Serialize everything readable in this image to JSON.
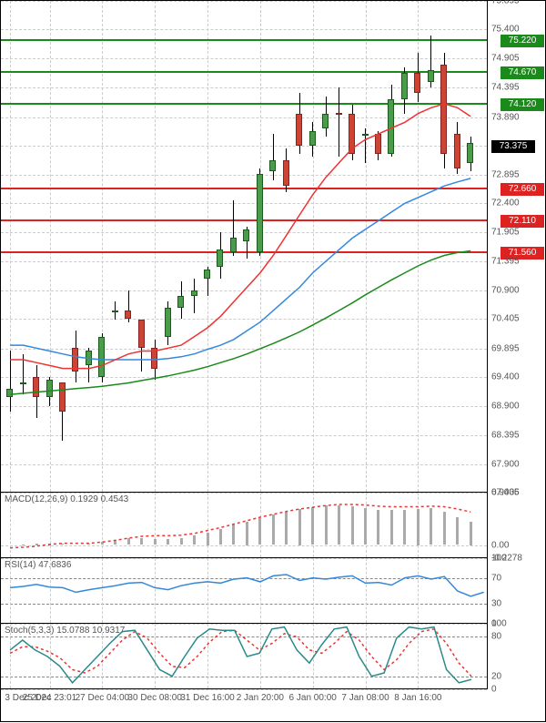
{
  "main": {
    "ymin": 67.405,
    "ymax": 75.895,
    "yticks": [
      67.405,
      67.9,
      68.395,
      68.9,
      69.4,
      69.895,
      70.405,
      70.9,
      71.395,
      71.905,
      72.4,
      72.895,
      73.395,
      73.89,
      74.395,
      74.905,
      75.4,
      75.895
    ],
    "grid_color": "#cccccc",
    "hlines": [
      {
        "value": 75.22,
        "color": "#1a8a1a",
        "label": "75.220",
        "label_bg": "#1a8a1a"
      },
      {
        "value": 74.67,
        "color": "#1a8a1a",
        "label": "74.670",
        "label_bg": "#1a8a1a"
      },
      {
        "value": 74.12,
        "color": "#1a8a1a",
        "label": "74.120",
        "label_bg": "#1a8a1a"
      },
      {
        "value": 72.66,
        "color": "#d22",
        "label": "72.660",
        "label_bg": "#d22"
      },
      {
        "value": 72.11,
        "color": "#d22",
        "label": "72.110",
        "label_bg": "#d22"
      },
      {
        "value": 71.56,
        "color": "#d22",
        "label": "71.560",
        "label_bg": "#d22"
      }
    ],
    "current_price": 73.375,
    "candles": [
      {
        "o": 69.05,
        "h": 69.85,
        "l": 68.8,
        "c": 69.2
      },
      {
        "o": 69.3,
        "h": 69.8,
        "l": 69.1,
        "c": 69.3
      },
      {
        "o": 69.4,
        "h": 69.6,
        "l": 68.7,
        "c": 69.05
      },
      {
        "o": 69.05,
        "h": 69.4,
        "l": 68.9,
        "c": 69.35
      },
      {
        "o": 69.3,
        "h": 69.3,
        "l": 68.3,
        "c": 68.8
      },
      {
        "o": 69.9,
        "h": 70.2,
        "l": 69.3,
        "c": 69.5
      },
      {
        "o": 69.6,
        "h": 69.9,
        "l": 69.3,
        "c": 69.85
      },
      {
        "o": 69.4,
        "h": 70.15,
        "l": 69.3,
        "c": 70.1
      },
      {
        "o": 70.55,
        "h": 70.7,
        "l": 70.4,
        "c": 70.55
      },
      {
        "o": 70.55,
        "h": 70.9,
        "l": 70.35,
        "c": 70.4
      },
      {
        "o": 70.4,
        "h": 70.4,
        "l": 69.5,
        "c": 69.9
      },
      {
        "o": 69.9,
        "h": 70.05,
        "l": 69.35,
        "c": 69.55
      },
      {
        "o": 70.1,
        "h": 70.7,
        "l": 69.95,
        "c": 70.6
      },
      {
        "o": 70.6,
        "h": 71.05,
        "l": 70.4,
        "c": 70.8
      },
      {
        "o": 70.8,
        "h": 71.1,
        "l": 70.5,
        "c": 70.9
      },
      {
        "o": 71.1,
        "h": 71.3,
        "l": 70.8,
        "c": 71.25
      },
      {
        "o": 71.3,
        "h": 71.9,
        "l": 71.1,
        "c": 71.6
      },
      {
        "o": 71.55,
        "h": 72.45,
        "l": 71.5,
        "c": 71.8
      },
      {
        "o": 71.75,
        "h": 72.0,
        "l": 71.45,
        "c": 71.95
      },
      {
        "o": 71.55,
        "h": 73.0,
        "l": 71.5,
        "c": 72.9
      },
      {
        "o": 72.95,
        "h": 73.6,
        "l": 72.8,
        "c": 73.15
      },
      {
        "o": 73.15,
        "h": 73.35,
        "l": 72.6,
        "c": 72.7
      },
      {
        "o": 73.95,
        "h": 74.3,
        "l": 73.25,
        "c": 73.4
      },
      {
        "o": 73.4,
        "h": 73.8,
        "l": 73.2,
        "c": 73.65
      },
      {
        "o": 73.7,
        "h": 74.25,
        "l": 73.55,
        "c": 73.95
      },
      {
        "o": 73.96,
        "h": 74.4,
        "l": 73.2,
        "c": 73.94
      },
      {
        "o": 73.95,
        "h": 74.1,
        "l": 73.15,
        "c": 73.25
      },
      {
        "o": 73.6,
        "h": 73.7,
        "l": 73.1,
        "c": 73.6
      },
      {
        "o": 73.6,
        "h": 73.65,
        "l": 73.15,
        "c": 73.25
      },
      {
        "o": 73.25,
        "h": 74.45,
        "l": 73.2,
        "c": 74.2
      },
      {
        "o": 74.2,
        "h": 74.75,
        "l": 73.95,
        "c": 74.65
      },
      {
        "o": 74.65,
        "h": 75.0,
        "l": 74.15,
        "c": 74.3
      },
      {
        "o": 74.5,
        "h": 75.3,
        "l": 74.4,
        "c": 74.7
      },
      {
        "o": 74.8,
        "h": 75.0,
        "l": 73.0,
        "c": 73.25
      },
      {
        "o": 73.6,
        "h": 73.8,
        "l": 72.9,
        "c": 73.0
      },
      {
        "o": 73.1,
        "h": 73.55,
        "l": 72.95,
        "c": 73.45
      }
    ],
    "ma_red": {
      "color": "#e33",
      "points": [
        69.7,
        69.7,
        69.65,
        69.6,
        69.55,
        69.55,
        69.55,
        69.6,
        69.7,
        69.8,
        69.85,
        69.85,
        69.9,
        69.95,
        70.1,
        70.25,
        70.45,
        70.7,
        70.95,
        71.2,
        71.5,
        71.85,
        72.2,
        72.55,
        72.85,
        73.1,
        73.35,
        73.5,
        73.6,
        73.7,
        73.8,
        73.95,
        74.05,
        74.12,
        74.05,
        73.9
      ]
    },
    "ma_blue": {
      "color": "#38d",
      "points": [
        69.95,
        69.95,
        69.9,
        69.85,
        69.8,
        69.75,
        69.72,
        69.7,
        69.7,
        69.7,
        69.7,
        69.7,
        69.72,
        69.75,
        69.8,
        69.88,
        69.95,
        70.05,
        70.2,
        70.35,
        70.55,
        70.75,
        70.95,
        71.2,
        71.4,
        71.6,
        71.8,
        71.95,
        72.1,
        72.25,
        72.4,
        72.5,
        72.6,
        72.7,
        72.77,
        72.83
      ]
    },
    "ma_green": {
      "color": "#1a8a1a",
      "points": [
        69.1,
        69.12,
        69.14,
        69.16,
        69.18,
        69.2,
        69.22,
        69.24,
        69.27,
        69.3,
        69.34,
        69.38,
        69.42,
        69.47,
        69.52,
        69.58,
        69.65,
        69.72,
        69.8,
        69.89,
        69.98,
        70.08,
        70.18,
        70.3,
        70.42,
        70.55,
        70.68,
        70.82,
        70.95,
        71.08,
        71.2,
        71.32,
        71.42,
        71.5,
        71.55,
        71.58
      ]
    }
  },
  "macd": {
    "label": "MACD(12,26,9) 0.1929 0.4543",
    "ymin": -0.2278,
    "ymax": 0.9036,
    "yticks": [
      -0.2278,
      0.0,
      0.9036
    ],
    "hist": [
      0.0,
      0.01,
      0.03,
      0.03,
      0.02,
      0.0,
      0.02,
      0.05,
      0.09,
      0.12,
      0.12,
      0.1,
      0.1,
      0.12,
      0.17,
      0.22,
      0.28,
      0.35,
      0.4,
      0.47,
      0.53,
      0.57,
      0.62,
      0.65,
      0.68,
      0.69,
      0.67,
      0.64,
      0.6,
      0.6,
      0.61,
      0.62,
      0.64,
      0.58,
      0.48,
      0.4
    ],
    "signal": [
      -0.05,
      -0.04,
      -0.02,
      0.01,
      0.03,
      0.03,
      0.03,
      0.05,
      0.08,
      0.12,
      0.15,
      0.16,
      0.16,
      0.17,
      0.2,
      0.25,
      0.3,
      0.36,
      0.42,
      0.48,
      0.53,
      0.58,
      0.62,
      0.65,
      0.68,
      0.7,
      0.7,
      0.69,
      0.67,
      0.66,
      0.66,
      0.66,
      0.67,
      0.66,
      0.62,
      0.57
    ],
    "signal_color": "#e33"
  },
  "rsi": {
    "label": "RSI(14) 47.6836",
    "ymin": 0,
    "ymax": 100,
    "yticks": [
      0,
      30,
      70,
      100
    ],
    "bands": [
      30,
      70
    ],
    "line": [
      55,
      57,
      60,
      56,
      55,
      48,
      52,
      55,
      58,
      62,
      63,
      55,
      52,
      58,
      62,
      64,
      62,
      68,
      70,
      64,
      73,
      75,
      66,
      70,
      68,
      71,
      73,
      62,
      63,
      59,
      70,
      73,
      68,
      72,
      50,
      42,
      48
    ],
    "line_color": "#38d"
  },
  "stoch": {
    "label": "Stoch(5,3,3) 15.0788 10.9317",
    "ymin": 0,
    "ymax": 100,
    "yticks": [
      0,
      20,
      80,
      100
    ],
    "bands": [
      20,
      80
    ],
    "k": [
      60,
      75,
      60,
      50,
      35,
      10,
      30,
      50,
      70,
      88,
      90,
      60,
      30,
      20,
      50,
      78,
      92,
      90,
      90,
      50,
      55,
      92,
      95,
      60,
      40,
      68,
      92,
      95,
      50,
      20,
      25,
      78,
      95,
      92,
      95,
      30,
      10,
      15
    ],
    "k_color": "#2a8a8a",
    "d": [
      55,
      65,
      65,
      58,
      48,
      30,
      25,
      35,
      55,
      75,
      88,
      78,
      55,
      35,
      33,
      50,
      72,
      88,
      90,
      75,
      60,
      70,
      85,
      80,
      60,
      55,
      70,
      88,
      75,
      50,
      30,
      45,
      70,
      88,
      92,
      70,
      40,
      20
    ],
    "d_color": "#e33"
  },
  "xaxis": {
    "labels": [
      "3 Dec 2024",
      "25 Dec 23:01",
      "27 Dec 04:00",
      "30 Dec 08:00",
      "31 Dec 16:00",
      "2 Jan 20:00",
      "6 Jan 00:00",
      "7 Jan 08:00",
      "8 Jan 16:00"
    ],
    "positions": [
      0,
      3,
      7,
      11,
      15,
      19,
      23,
      27,
      31
    ]
  }
}
